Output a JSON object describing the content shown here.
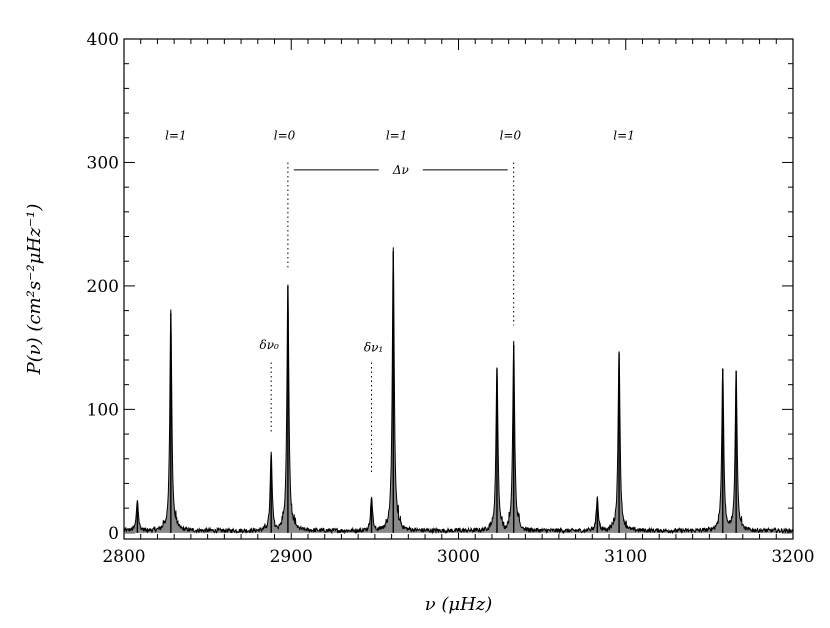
{
  "chart_data": {
    "type": "line",
    "title": "",
    "xlabel": "ν (μHz)",
    "ylabel": "P(ν) (cm²s⁻²μHz⁻¹)",
    "xlim": [
      2800,
      3200
    ],
    "ylim": [
      -5,
      400
    ],
    "grid": false,
    "legend": "none",
    "x_ticks": [
      2800,
      2900,
      3000,
      3100,
      3200
    ],
    "x_tick_labels": [
      "2800",
      "2900",
      "3000",
      "3100",
      "3200"
    ],
    "y_ticks": [
      0,
      100,
      200,
      300,
      400
    ],
    "y_tick_labels": [
      "0",
      "100",
      "200",
      "300",
      "400"
    ],
    "peaks": [
      {
        "x": 2808,
        "y": 25
      },
      {
        "x": 2828,
        "y": 178
      },
      {
        "x": 2888,
        "y": 63
      },
      {
        "x": 2898,
        "y": 200
      },
      {
        "x": 2948,
        "y": 28
      },
      {
        "x": 2961,
        "y": 228
      },
      {
        "x": 3023,
        "y": 133
      },
      {
        "x": 3033,
        "y": 152
      },
      {
        "x": 3083,
        "y": 28
      },
      {
        "x": 3096,
        "y": 146
      },
      {
        "x": 3158,
        "y": 133
      },
      {
        "x": 3166,
        "y": 131
      }
    ],
    "mode_labels": [
      {
        "text": "l=1",
        "x": 2831,
        "y": 322
      },
      {
        "text": "l=0",
        "x": 2896,
        "y": 322
      },
      {
        "text": "l=1",
        "x": 2963,
        "y": 322
      },
      {
        "text": "l=0",
        "x": 3031,
        "y": 322
      },
      {
        "text": "l=1",
        "x": 3099,
        "y": 322
      }
    ],
    "annotations": {
      "large_separation": {
        "label": "Δν",
        "x_start": 2898,
        "x_end": 3033,
        "y": 294
      },
      "small_separation_0": {
        "label": "δν₀",
        "x": 2888,
        "y": 152
      },
      "small_separation_1": {
        "label": "δν₁",
        "x": 2948,
        "y": 150
      }
    }
  }
}
